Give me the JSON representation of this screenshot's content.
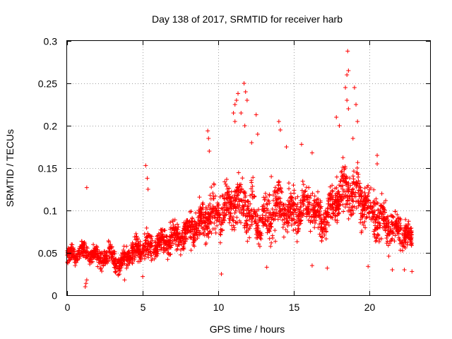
{
  "chart_data": {
    "type": "scatter",
    "title": "Day 138 of 2017, SRMTID for receiver harb",
    "xlabel": "GPS time / hours",
    "ylabel": "SRMTID / TECUs",
    "xlim": [
      0,
      24
    ],
    "ylim": [
      0,
      0.3
    ],
    "xticks": [
      0,
      5,
      10,
      15,
      20
    ],
    "yticks": [
      0,
      0.05,
      0.1,
      0.15,
      0.2,
      0.25,
      0.3
    ],
    "xtick_labels": [
      "0",
      "5",
      "10",
      "15",
      "20"
    ],
    "ytick_labels": [
      "0",
      "0.05",
      "0.1",
      "0.15",
      "0.2",
      "0.25",
      "0.3"
    ],
    "grid": true,
    "marker": "+",
    "series": [
      {
        "name": "SRMTID",
        "color": "#ff0000",
        "trend": [
          [
            0.0,
            0.045
          ],
          [
            1.0,
            0.052
          ],
          [
            2.0,
            0.045
          ],
          [
            3.0,
            0.048
          ],
          [
            3.5,
            0.035
          ],
          [
            4.0,
            0.048
          ],
          [
            5.0,
            0.055
          ],
          [
            6.0,
            0.06
          ],
          [
            7.0,
            0.068
          ],
          [
            8.0,
            0.075
          ],
          [
            9.0,
            0.088
          ],
          [
            10.0,
            0.095
          ],
          [
            11.0,
            0.11
          ],
          [
            12.0,
            0.1
          ],
          [
            13.0,
            0.085
          ],
          [
            14.0,
            0.105
          ],
          [
            15.0,
            0.095
          ],
          [
            16.0,
            0.105
          ],
          [
            17.0,
            0.085
          ],
          [
            18.0,
            0.12
          ],
          [
            19.0,
            0.12
          ],
          [
            20.0,
            0.1
          ],
          [
            21.0,
            0.085
          ],
          [
            22.0,
            0.075
          ],
          [
            22.8,
            0.065
          ]
        ],
        "spread": [
          [
            0.0,
            0.015
          ],
          [
            4.0,
            0.018
          ],
          [
            8.0,
            0.03
          ],
          [
            11.0,
            0.045
          ],
          [
            14.0,
            0.04
          ],
          [
            17.0,
            0.035
          ],
          [
            19.0,
            0.045
          ],
          [
            21.0,
            0.035
          ],
          [
            22.8,
            0.025
          ]
        ],
        "peaks": [
          [
            1.3,
            0.127
          ],
          [
            5.2,
            0.153
          ],
          [
            5.3,
            0.138
          ],
          [
            5.35,
            0.125
          ],
          [
            9.3,
            0.194
          ],
          [
            9.35,
            0.185
          ],
          [
            9.4,
            0.17
          ],
          [
            11.0,
            0.215
          ],
          [
            11.1,
            0.225
          ],
          [
            11.2,
            0.23
          ],
          [
            11.3,
            0.238
          ],
          [
            11.1,
            0.205
          ],
          [
            11.5,
            0.215
          ],
          [
            11.7,
            0.25
          ],
          [
            11.8,
            0.24
          ],
          [
            11.9,
            0.23
          ],
          [
            11.75,
            0.2
          ],
          [
            12.2,
            0.18
          ],
          [
            12.5,
            0.213
          ],
          [
            12.6,
            0.19
          ],
          [
            14.0,
            0.205
          ],
          [
            14.1,
            0.195
          ],
          [
            14.5,
            0.175
          ],
          [
            15.5,
            0.178
          ],
          [
            16.2,
            0.168
          ],
          [
            17.8,
            0.21
          ],
          [
            18.0,
            0.2
          ],
          [
            18.4,
            0.245
          ],
          [
            18.5,
            0.26
          ],
          [
            18.6,
            0.265
          ],
          [
            18.55,
            0.288
          ],
          [
            18.5,
            0.23
          ],
          [
            18.6,
            0.22
          ],
          [
            19.0,
            0.245
          ],
          [
            19.1,
            0.225
          ],
          [
            19.2,
            0.205
          ],
          [
            18.9,
            0.185
          ],
          [
            20.5,
            0.165
          ],
          [
            20.5,
            0.155
          ],
          [
            13.5,
            0.14
          ]
        ],
        "lows": [
          [
            1.2,
            0.01
          ],
          [
            1.25,
            0.014
          ],
          [
            1.3,
            0.018
          ],
          [
            3.8,
            0.018
          ],
          [
            5.0,
            0.022
          ],
          [
            10.2,
            0.025
          ],
          [
            13.2,
            0.033
          ],
          [
            16.2,
            0.035
          ],
          [
            17.2,
            0.032
          ],
          [
            19.9,
            0.034
          ],
          [
            21.5,
            0.03
          ],
          [
            22.3,
            0.03
          ],
          [
            22.8,
            0.028
          ]
        ]
      }
    ]
  }
}
